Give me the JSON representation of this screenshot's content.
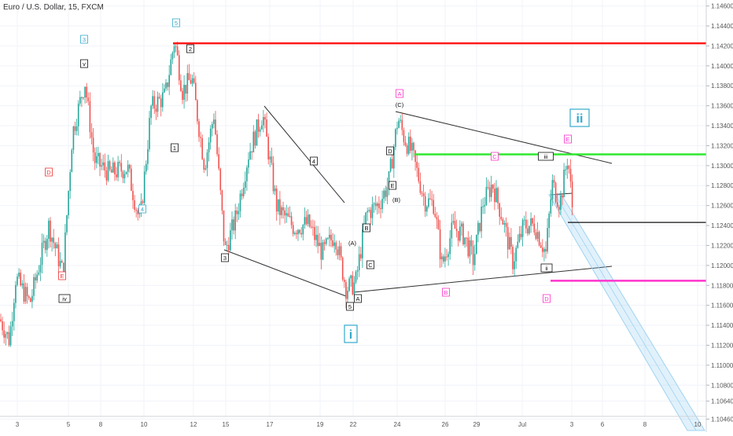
{
  "symbol_title": "Euro / U.S. Dollar, 15, FXCM",
  "chart_data": {
    "type": "candlestick",
    "title": "Euro / U.S. Dollar, 15, FXCM",
    "ylim": [
      1.1044,
      1.1466
    ],
    "y_ticks": [
      1.1046,
      1.1064,
      1.108,
      1.11,
      1.112,
      1.114,
      1.116,
      1.118,
      1.12,
      1.122,
      1.124,
      1.126,
      1.128,
      1.13,
      1.132,
      1.134,
      1.136,
      1.138,
      1.14,
      1.142,
      1.144,
      1.146
    ],
    "y_tick_labels": [
      "1.10460",
      "1.10640",
      "1.10800",
      "1.11000",
      "1.11200",
      "1.11400",
      "1.11600",
      "1.11800",
      "1.12000",
      "1.12200",
      "1.12400",
      "1.12600",
      "1.12800",
      "1.13000",
      "1.13200",
      "1.13400",
      "1.13600",
      "1.13800",
      "1.14000",
      "1.14200",
      "1.14400",
      "1.14600"
    ],
    "x_ticks": [
      "3",
      "5",
      "8",
      "10",
      "12",
      "15",
      "17",
      "19",
      "22",
      "24",
      "26",
      "29",
      "Jul",
      "3",
      "6",
      "8",
      "10"
    ],
    "price_path": [
      [
        0,
        1.1146
      ],
      [
        12,
        1.1125
      ],
      [
        20,
        1.1188
      ],
      [
        38,
        1.1162
      ],
      [
        62,
        1.124
      ],
      [
        80,
        1.1192
      ],
      [
        92,
        1.1332
      ],
      [
        108,
        1.1384
      ],
      [
        120,
        1.1305
      ],
      [
        140,
        1.1292
      ],
      [
        162,
        1.1298
      ],
      [
        178,
        1.1242
      ],
      [
        192,
        1.1358
      ],
      [
        210,
        1.137
      ],
      [
        222,
        1.1426
      ],
      [
        232,
        1.1375
      ],
      [
        244,
        1.1388
      ],
      [
        260,
        1.13
      ],
      [
        272,
        1.1352
      ],
      [
        286,
        1.1214
      ],
      [
        300,
        1.1248
      ],
      [
        316,
        1.1312
      ],
      [
        334,
        1.1352
      ],
      [
        352,
        1.1258
      ],
      [
        374,
        1.1238
      ],
      [
        392,
        1.1242
      ],
      [
        410,
        1.1212
      ],
      [
        426,
        1.1232
      ],
      [
        440,
        1.1177
      ],
      [
        452,
        1.1182
      ],
      [
        466,
        1.1252
      ],
      [
        482,
        1.1262
      ],
      [
        494,
        1.1282
      ],
      [
        506,
        1.1348
      ],
      [
        514,
        1.1328
      ],
      [
        524,
        1.1312
      ],
      [
        540,
        1.1265
      ],
      [
        552,
        1.1262
      ],
      [
        562,
        1.12
      ],
      [
        576,
        1.1238
      ],
      [
        590,
        1.123
      ],
      [
        602,
        1.1205
      ],
      [
        614,
        1.1262
      ],
      [
        626,
        1.1282
      ],
      [
        638,
        1.125
      ],
      [
        652,
        1.1204
      ],
      [
        666,
        1.124
      ],
      [
        680,
        1.124
      ],
      [
        694,
        1.1212
      ],
      [
        702,
        1.1282
      ],
      [
        712,
        1.1262
      ],
      [
        722,
        1.131
      ],
      [
        728,
        1.1255
      ]
    ],
    "horizontal_levels": [
      {
        "price": 1.14226,
        "label": "1.14226",
        "color": "#ff1a1a"
      },
      {
        "price": 1.13113,
        "label": "1.13113",
        "color": "#2ee82e"
      },
      {
        "price": 1.12431,
        "label": "1.12431",
        "color": "#111111"
      },
      {
        "price": 1.11846,
        "label": "1.11846",
        "color": "#ff33cc"
      }
    ],
    "current_price": {
      "price": 1.1278,
      "label": "1.12780",
      "time_label": "13:39",
      "color": "#ef5350"
    },
    "annotations": [
      {
        "text": "3",
        "color": "#33aacc"
      },
      {
        "text": "5",
        "color": "#33aacc"
      },
      {
        "text": "4",
        "color": "#33aacc"
      },
      {
        "text": "v",
        "color": "#111111"
      },
      {
        "text": "iv",
        "color": "#111111"
      },
      {
        "text": "D",
        "color": "#ee3333"
      },
      {
        "text": "E",
        "color": "#ee3333"
      },
      {
        "text": "1",
        "color": "#111111"
      },
      {
        "text": "2",
        "color": "#111111"
      },
      {
        "text": "3",
        "color": "#111111"
      },
      {
        "text": "4",
        "color": "#111111"
      },
      {
        "text": "5",
        "color": "#111111"
      },
      {
        "text": "A",
        "color": "#111111"
      },
      {
        "text": "B",
        "color": "#111111"
      },
      {
        "text": "C",
        "color": "#111111"
      },
      {
        "text": "D",
        "color": "#111111"
      },
      {
        "text": "E",
        "color": "#111111"
      },
      {
        "text": "(A)",
        "color": "#111111"
      },
      {
        "text": "(B)",
        "color": "#111111"
      },
      {
        "text": "(C)",
        "color": "#111111"
      },
      {
        "text": "A",
        "color": "#ff33cc"
      },
      {
        "text": "B",
        "color": "#ff33cc"
      },
      {
        "text": "C",
        "color": "#ff33cc"
      },
      {
        "text": "D",
        "color": "#ff33cc"
      },
      {
        "text": "E",
        "color": "#ff33cc"
      },
      {
        "text": "i",
        "color": "#33aacc"
      },
      {
        "text": "ii",
        "color": "#33aacc"
      },
      {
        "text": "iii",
        "color": "#111111"
      },
      {
        "text": "ii",
        "color": "#111111"
      }
    ],
    "candle_colors": {
      "up": "#26a69a",
      "down": "#ef5350"
    },
    "grid": true
  }
}
